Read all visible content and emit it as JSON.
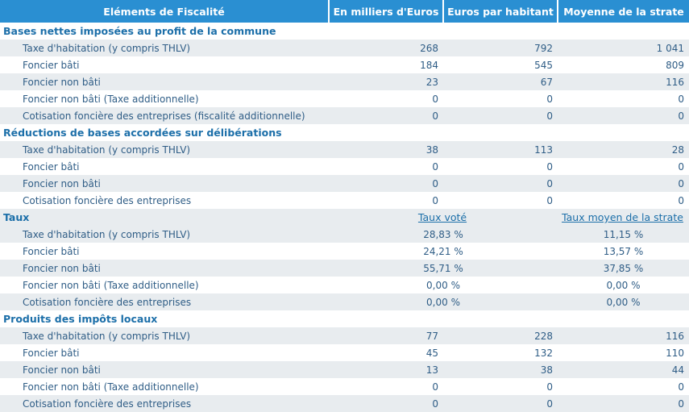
{
  "header": [
    "Eléments de Fiscalité",
    "En milliers d'Euros",
    "Euros par habitant",
    "Moyenne de la strate"
  ],
  "sections": [
    {
      "title": "Bases nettes imposées au profit de la commune",
      "rows": [
        [
          "Taxe d'habitation (y compris THLV)",
          "268",
          "792",
          "1 041"
        ],
        [
          "Foncier bâti",
          "184",
          "545",
          "809"
        ],
        [
          "Foncier non bâti",
          "23",
          "67",
          "116"
        ],
        [
          "Foncier non bâti (Taxe additionnelle)",
          "0",
          "0",
          "0"
        ],
        [
          "Cotisation foncière des entreprises (fiscalité additionnelle)",
          "0",
          "0",
          "0"
        ]
      ]
    },
    {
      "title": "Réductions de bases accordées sur délibérations",
      "rows": [
        [
          "Taxe d'habitation (y compris THLV)",
          "38",
          "113",
          "28"
        ],
        [
          "Foncier bâti",
          "0",
          "0",
          "0"
        ],
        [
          "Foncier non bâti",
          "0",
          "0",
          "0"
        ],
        [
          "Cotisation foncière des entreprises",
          "0",
          "0",
          "0"
        ]
      ]
    },
    {
      "title": "Taux",
      "columns": [
        "Taux voté",
        "Taux moyen de la strate"
      ],
      "rows": [
        [
          "Taxe d'habitation (y compris THLV)",
          "28,83 %",
          "11,15 %"
        ],
        [
          "Foncier bâti",
          "24,21 %",
          "13,57 %"
        ],
        [
          "Foncier non bâti",
          "55,71 %",
          "37,85 %"
        ],
        [
          "Foncier non bâti (Taxe additionnelle)",
          "0,00 %",
          "0,00 %"
        ],
        [
          "Cotisation foncière des entreprises",
          "0,00 %",
          "0,00 %"
        ]
      ]
    },
    {
      "title": "Produits des impôts locaux",
      "rows": [
        [
          "Taxe d'habitation (y compris THLV)",
          "77",
          "228",
          "116"
        ],
        [
          "Foncier bâti",
          "45",
          "132",
          "110"
        ],
        [
          "Foncier non bâti",
          "13",
          "38",
          "44"
        ],
        [
          "Foncier non bâti (Taxe additionnelle)",
          "0",
          "0",
          "0"
        ],
        [
          "Cotisation foncière des entreprises",
          "0",
          "0",
          "0"
        ]
      ]
    }
  ]
}
